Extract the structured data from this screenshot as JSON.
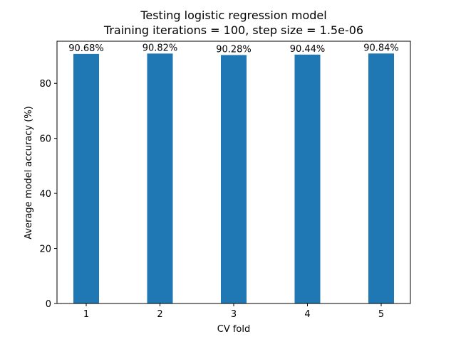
{
  "chart_data": {
    "type": "bar",
    "title": "Testing logistic regression model",
    "subtitle": "Training iterations = 100, step size = 1.5e-06",
    "xlabel": "CV fold",
    "ylabel": "Average model accuracy (%)",
    "categories": [
      "1",
      "2",
      "3",
      "4",
      "5"
    ],
    "values": [
      90.68,
      90.82,
      90.28,
      90.44,
      90.84
    ],
    "data_labels": [
      "90.68%",
      "90.82%",
      "90.28%",
      "90.44%",
      "90.84%"
    ],
    "yticks": [
      0,
      20,
      40,
      60,
      80
    ],
    "ytick_labels": [
      "0",
      "20",
      "40",
      "60",
      "80"
    ],
    "ylim": [
      0,
      95.3
    ],
    "bar_color": "#1f77b4",
    "grid": false,
    "legend": "none"
  }
}
